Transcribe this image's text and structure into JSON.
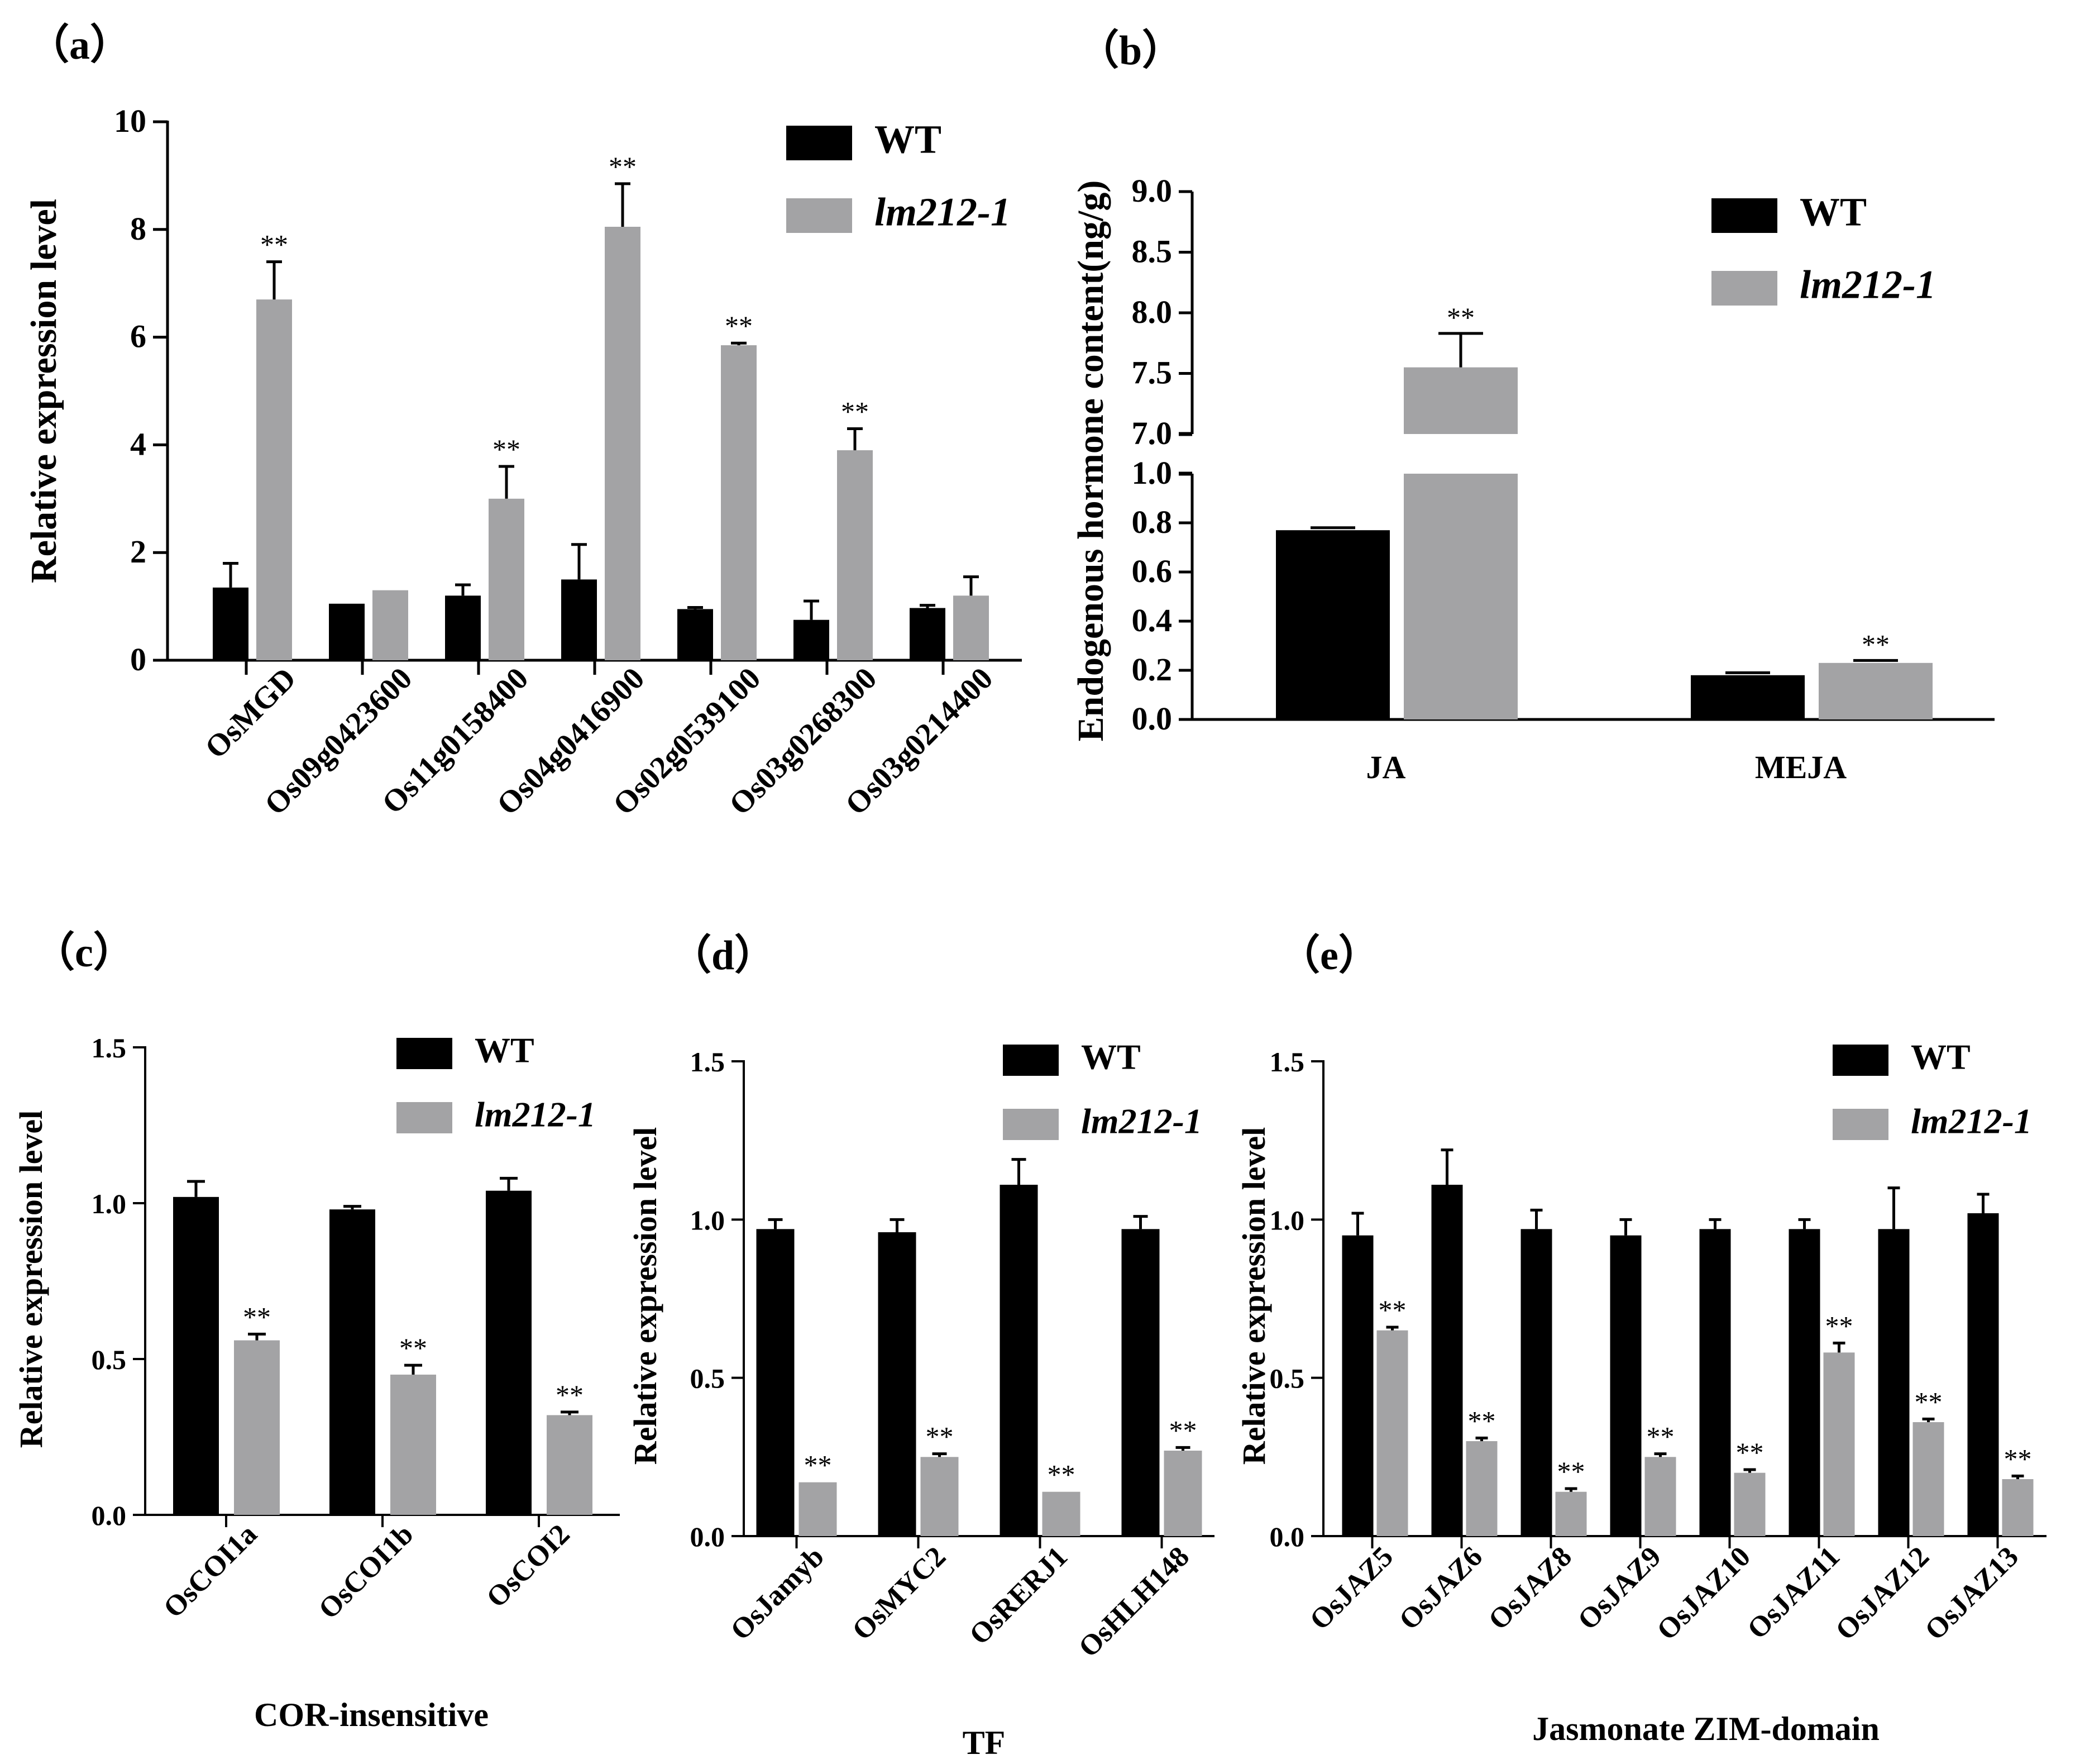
{
  "colors": {
    "wt": "#000000",
    "mutant": "#a3a3a5",
    "axis": "#000000"
  },
  "legend": {
    "wt": "WT",
    "mutant": "lm212-1"
  },
  "chart_data": [
    {
      "id": "a",
      "panel_label": "（a）",
      "type": "bar",
      "ylabel": "Relative expression level",
      "xlabel": "",
      "ylim": [
        0,
        10
      ],
      "yticks": [
        0,
        2,
        4,
        6,
        8,
        10
      ],
      "categories": [
        "OsMGD",
        "Os09g0423600",
        "Os11g0158400",
        "Os04g0416900",
        "Os02g0539100",
        "Os03g0268300",
        "Os03g0214400"
      ],
      "series": [
        {
          "name": "WT",
          "values": [
            1.35,
            1.05,
            1.2,
            1.5,
            0.95,
            0.75,
            0.97
          ],
          "errors": [
            0.45,
            0.0,
            0.2,
            0.65,
            0.03,
            0.35,
            0.05
          ],
          "sig": [
            "",
            "",
            "",
            "",
            "",
            "",
            ""
          ]
        },
        {
          "name": "lm212-1",
          "values": [
            6.7,
            1.3,
            3.0,
            8.05,
            5.85,
            3.9,
            1.2
          ],
          "errors": [
            0.7,
            0.0,
            0.6,
            0.8,
            0.04,
            0.4,
            0.35
          ],
          "sig": [
            "**",
            "",
            "**",
            "**",
            "**",
            "**",
            ""
          ]
        }
      ],
      "legend_position": "top-right"
    },
    {
      "id": "b",
      "panel_label": "（b）",
      "type": "bar",
      "ylabel": "Endogenous hormone content(ng/g)",
      "xlabel": "",
      "broken_axis": true,
      "ylim_lower": [
        0,
        1.0
      ],
      "yticks_lower": [
        "0.0",
        "0.2",
        "0.4",
        "0.6",
        "0.8",
        "1.0"
      ],
      "ylim_upper": [
        7.0,
        9.0
      ],
      "yticks_upper": [
        "7.0",
        "7.5",
        "8.0",
        "8.5",
        "9.0"
      ],
      "categories": [
        "JA",
        "MEJA"
      ],
      "series": [
        {
          "name": "WT",
          "values": [
            0.77,
            0.18
          ],
          "errors": [
            0.01,
            0.01
          ],
          "sig": [
            "",
            ""
          ]
        },
        {
          "name": "lm212-1",
          "values": [
            7.55,
            0.23
          ],
          "errors": [
            0.28,
            0.01
          ],
          "sig": [
            "**",
            "**"
          ]
        }
      ],
      "legend_position": "top-right"
    },
    {
      "id": "c",
      "panel_label": "（c）",
      "type": "bar",
      "ylabel": "Relative expression level",
      "xlabel": "COR-insensitive",
      "ylim": [
        0,
        1.5
      ],
      "yticks": [
        "0.0",
        "0.5",
        "1.0",
        "1.5"
      ],
      "categories": [
        "OsCOI1a",
        "OsCOI1b",
        "OsCOI2"
      ],
      "series": [
        {
          "name": "WT",
          "values": [
            1.02,
            0.98,
            1.04
          ],
          "errors": [
            0.05,
            0.01,
            0.04
          ],
          "sig": [
            "",
            "",
            ""
          ]
        },
        {
          "name": "lm212-1",
          "values": [
            0.56,
            0.45,
            0.32
          ],
          "errors": [
            0.02,
            0.03,
            0.01
          ],
          "sig": [
            "**",
            "**",
            "**"
          ]
        }
      ],
      "legend_position": "top-right"
    },
    {
      "id": "d",
      "panel_label": "（d）",
      "type": "bar",
      "ylabel": "Relative expression level",
      "xlabel": "TF",
      "ylim": [
        0,
        1.5
      ],
      "yticks": [
        "0.0",
        "0.5",
        "1.0",
        "1.5"
      ],
      "categories": [
        "OsJamyb",
        "OsMYC2",
        "OsRERJ1",
        "OsHLH148"
      ],
      "series": [
        {
          "name": "WT",
          "values": [
            0.97,
            0.96,
            1.11,
            0.97
          ],
          "errors": [
            0.03,
            0.04,
            0.08,
            0.04
          ],
          "sig": [
            "",
            "",
            "",
            ""
          ]
        },
        {
          "name": "lm212-1",
          "values": [
            0.17,
            0.25,
            0.14,
            0.27
          ],
          "errors": [
            0.0,
            0.01,
            0.0,
            0.01
          ],
          "sig": [
            "**",
            "**",
            "**",
            "**"
          ]
        }
      ],
      "legend_position": "top-right"
    },
    {
      "id": "e",
      "panel_label": "（e）",
      "type": "bar",
      "ylabel": "Relative expression level",
      "xlabel": "Jasmonate ZIM-domain",
      "ylim": [
        0,
        1.5
      ],
      "yticks": [
        "0.0",
        "0.5",
        "1.0",
        "1.5"
      ],
      "categories": [
        "OsJAZ5",
        "OsJAZ6",
        "OsJAZ8",
        "OsJAZ9",
        "OsJAZ10",
        "OsJAZ11",
        "OsJAZ12",
        "OsJAZ13"
      ],
      "series": [
        {
          "name": "WT",
          "values": [
            0.95,
            1.11,
            0.97,
            0.95,
            0.97,
            0.97,
            0.97,
            1.02
          ],
          "errors": [
            0.07,
            0.11,
            0.06,
            0.05,
            0.03,
            0.03,
            0.13,
            0.06
          ],
          "sig": [
            "",
            "",
            "",
            "",
            "",
            "",
            "",
            ""
          ]
        },
        {
          "name": "lm212-1",
          "values": [
            0.65,
            0.3,
            0.14,
            0.25,
            0.2,
            0.58,
            0.36,
            0.18
          ],
          "errors": [
            0.01,
            0.01,
            0.01,
            0.01,
            0.01,
            0.03,
            0.01,
            0.01
          ],
          "sig": [
            "**",
            "**",
            "**",
            "**",
            "**",
            "**",
            "**",
            "**"
          ]
        }
      ],
      "legend_position": "top-right"
    }
  ]
}
